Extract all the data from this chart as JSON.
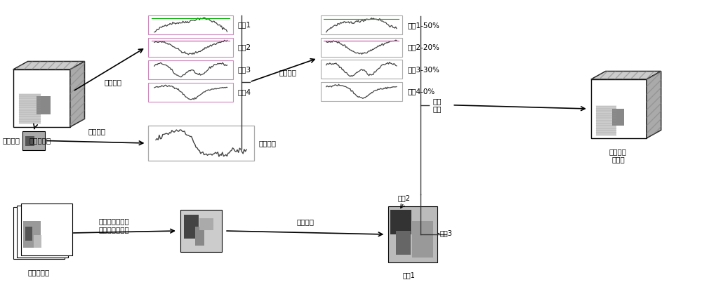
{
  "bg_color": "#ffffff",
  "title": "",
  "labels": {
    "hyperspectral": "高光谱图像",
    "mixed_pixel": "混合像元",
    "multispectral": "多光谱图像",
    "endmember_extraction": "端元提取",
    "pixel_spectrum": "像元光谱",
    "mixed_spectrum_label": "混合光谱",
    "spectral_unmixing": "光谱解混",
    "cluster_analysis": "聚类分析",
    "fusion_reconstruction": "融合\n重构",
    "fused_hyperspectral": "融合高光\n谱图像",
    "mixed_multispectral_region": "混合像元对应的\n多光谱图像区域",
    "endmember1": "端元1",
    "endmember2": "端元2",
    "endmember3": "端元3",
    "endmember4": "端元4",
    "endmember1_50": "端元1-50%",
    "endmember2_20": "端元2-20%",
    "endmember3_30": "端元3-30%",
    "endmember4_0": "端元4-0%",
    "endmember1_cluster": "端元1",
    "endmember2_cluster": "端元2",
    "endmember3_cluster": "端元3"
  },
  "arrow_color": "#333333",
  "line_color": "#444444",
  "border_color_pink": "#cc88bb",
  "border_color_gray": "#aaaaaa",
  "green_line": "#00aa00",
  "pink_line": "#cc44aa"
}
